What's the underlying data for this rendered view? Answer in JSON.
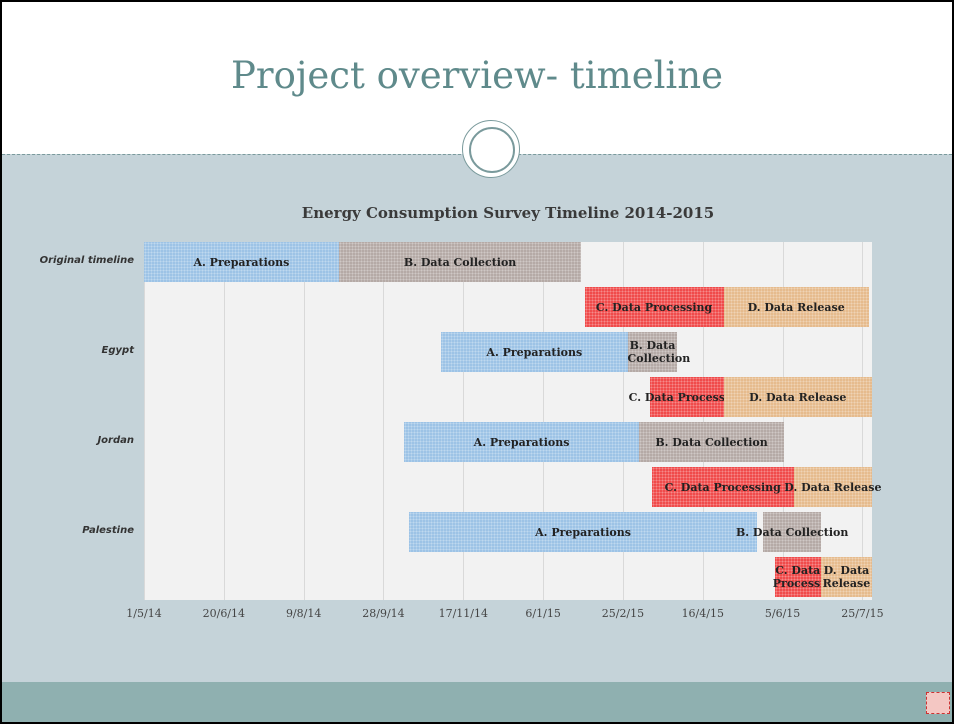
{
  "slide_title": "Project overview- timeline",
  "chart_data": {
    "type": "gantt",
    "title": "Energy Consumption Survey Timeline 2014-2015",
    "categories": [
      "Original timeline",
      "Egypt",
      "Jordan",
      "Palestine"
    ],
    "xlim": [
      "2014-05-01",
      "2015-07-31"
    ],
    "xticks": [
      {
        "value": "2014-05-01",
        "label": "1/5/14"
      },
      {
        "value": "2014-06-20",
        "label": "20/6/14"
      },
      {
        "value": "2014-08-09",
        "label": "9/8/14"
      },
      {
        "value": "2014-09-28",
        "label": "28/9/14"
      },
      {
        "value": "2014-11-17",
        "label": "17/11/14"
      },
      {
        "value": "2015-01-06",
        "label": "6/1/15"
      },
      {
        "value": "2015-02-25",
        "label": "25/2/15"
      },
      {
        "value": "2015-04-16",
        "label": "16/4/15"
      },
      {
        "value": "2015-06-05",
        "label": "5/6/15"
      },
      {
        "value": "2015-07-25",
        "label": "25/7/15"
      }
    ],
    "grid": true,
    "series": [
      {
        "name": "A. Preparations",
        "color": "#9dc3e6",
        "start": [
          "2014-05-01",
          "2014-11-03",
          "2014-10-11",
          "2014-10-14"
        ],
        "end": [
          "2014-08-31",
          "2015-02-28",
          "2015-03-07",
          "2015-05-20"
        ]
      },
      {
        "name": "B. Data Collection",
        "color": "#b5aaa6",
        "start": [
          "2014-08-31",
          "2015-02-28",
          "2015-03-07",
          "2015-05-24"
        ],
        "end": [
          "2015-01-30",
          "2015-03-31",
          "2015-06-06",
          "2015-06-29"
        ]
      },
      {
        "name": "C. Data Processing",
        "color": "#f04b4b",
        "start": [
          "2015-02-01",
          "2015-03-14",
          "2015-03-15",
          "2015-05-31"
        ],
        "end": [
          "2015-04-29",
          "2015-04-29",
          "2015-06-12",
          "2015-06-29"
        ]
      },
      {
        "name": "D. Data Release",
        "color": "#e6bb8d",
        "start": [
          "2015-04-29",
          "2015-04-29",
          "2015-06-12",
          "2015-06-29"
        ],
        "end": [
          "2015-07-29",
          "2015-07-31",
          "2015-07-31",
          "2015-07-31"
        ]
      }
    ]
  }
}
